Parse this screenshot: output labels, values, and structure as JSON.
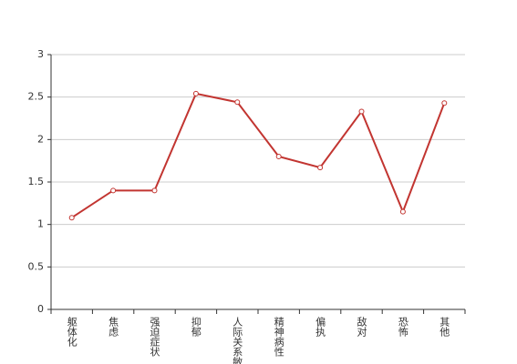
{
  "chart_data": {
    "type": "line",
    "categories": [
      "躯体化",
      "焦虑",
      "强迫症状",
      "抑郁",
      "人际关系敏感",
      "精神病性",
      "偏执",
      "敌对",
      "恐怖",
      "其他"
    ],
    "values": [
      1.08,
      1.4,
      1.4,
      2.54,
      2.44,
      1.8,
      1.67,
      2.33,
      1.15,
      2.43
    ],
    "color": "#c23531",
    "ylim": [
      0,
      3
    ],
    "yticks": [
      0,
      0.5,
      1,
      1.5,
      2,
      2.5,
      3
    ],
    "grid": true
  }
}
